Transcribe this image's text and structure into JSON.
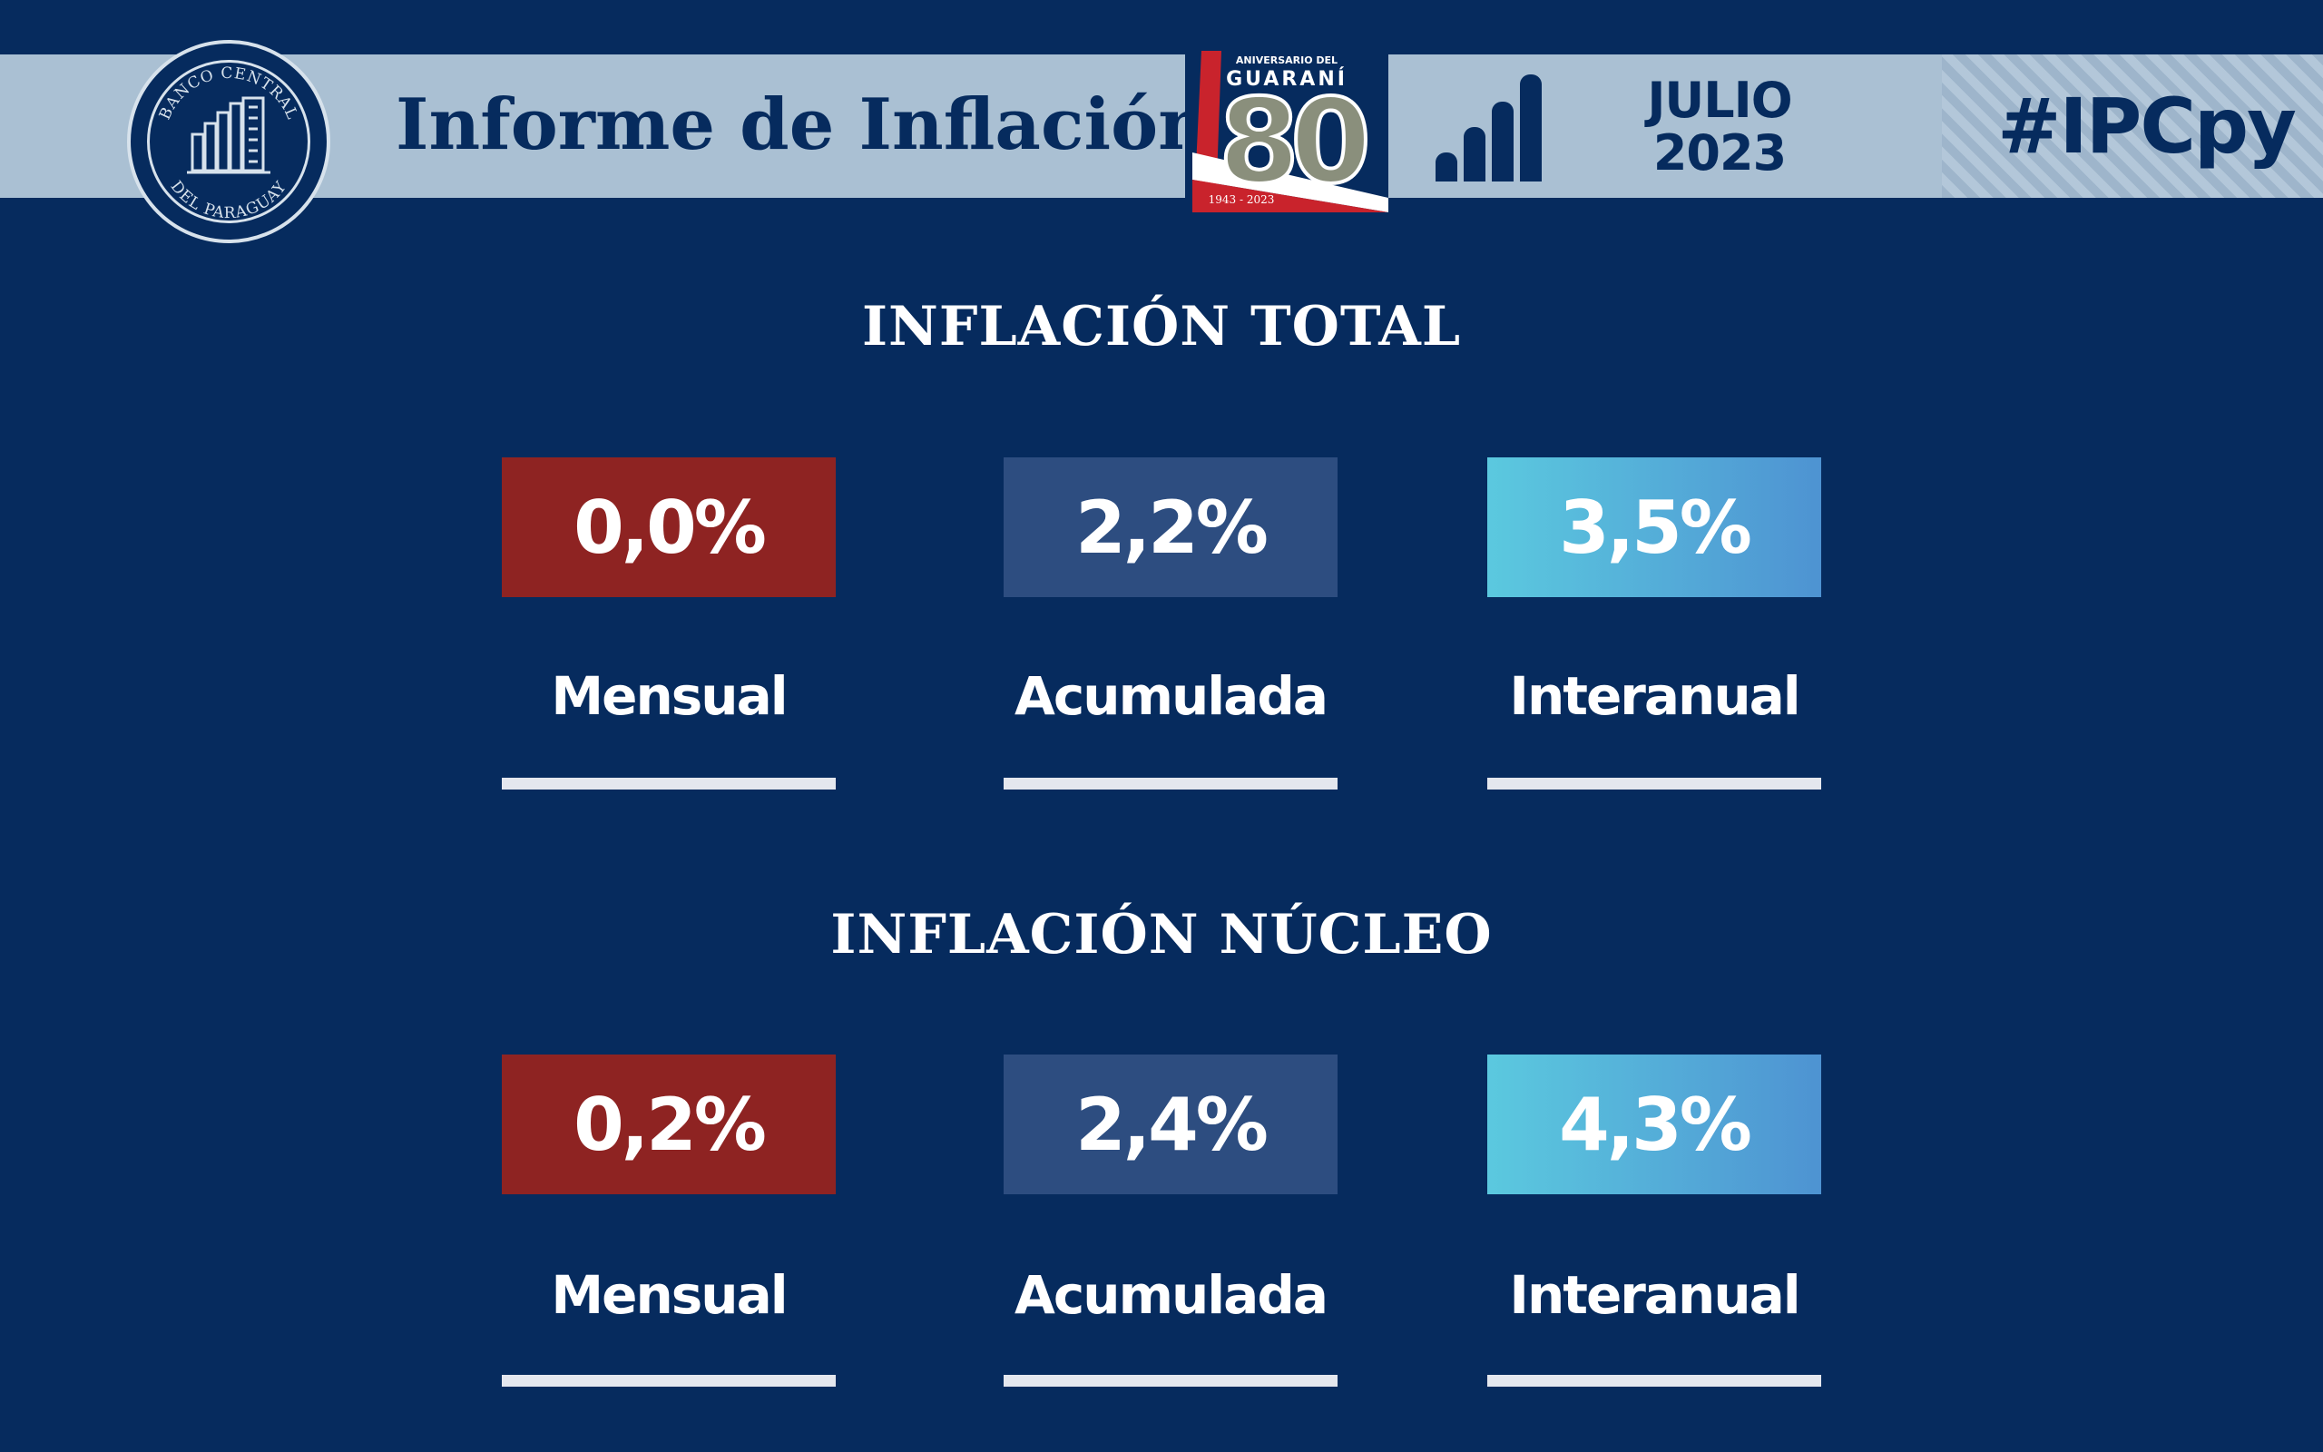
{
  "header": {
    "seal_top_text": "BANCO CENTRAL",
    "seal_bottom_text": "DEL PARAGUAY",
    "title": "Informe de Inflación",
    "anniversary": {
      "line1": "ANIVERSARIO DEL",
      "line2": "GUARANÍ",
      "number": "80",
      "years": "1943 - 2023"
    },
    "month": "JULIO",
    "year": "2023",
    "hashtag": "#IPCpy"
  },
  "sections": [
    {
      "title": "INFLACIÓN TOTAL",
      "items": [
        {
          "value": "0,0%",
          "label": "Mensual"
        },
        {
          "value": "2,2%",
          "label": "Acumulada"
        },
        {
          "value": "3,5%",
          "label": "Interanual"
        }
      ]
    },
    {
      "title": "INFLACIÓN NÚCLEO",
      "items": [
        {
          "value": "0,2%",
          "label": "Mensual"
        },
        {
          "value": "2,4%",
          "label": "Acumulada"
        },
        {
          "value": "4,3%",
          "label": "Interanual"
        }
      ]
    }
  ],
  "colors": {
    "background": "#062b5e",
    "banner": "#aac0d3",
    "monthly": "#8e2322",
    "accumulated": "#2d4d80",
    "yearly_start": "#5bc9df",
    "yearly_end": "#4e93d2"
  }
}
